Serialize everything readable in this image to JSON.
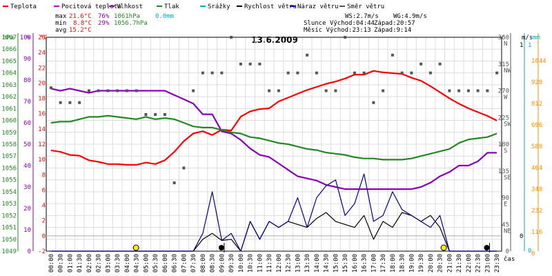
{
  "legend": [
    {
      "label": "Teplota",
      "color": "#ff0000"
    },
    {
      "label": "Pocitová teplota",
      "color": "#cc00cc"
    },
    {
      "label": "Vlhkost",
      "color": "#8800bb"
    },
    {
      "label": "Tlak",
      "color": "#228822"
    },
    {
      "label": "Srážky",
      "color": "#00aacc"
    },
    {
      "label": "Rychlost větru",
      "color": "#000000"
    },
    {
      "label": "Náraz větru",
      "color": "#00008b"
    },
    {
      "label": "Směr větru",
      "color": "#555555"
    }
  ],
  "stats": {
    "max_label": "max",
    "max_temp": "21.6°C",
    "max_hum": "76%",
    "max_press": "1061hPa",
    "max_rain": "0.0mm",
    "min_label": "min",
    "min_temp": "8.8°C",
    "min_hum": "29%",
    "min_press": "1056.7hPa",
    "avg_label": "avg",
    "avg_temp": "15.2°C",
    "ws": "WS:2.7m/s",
    "wg": "WG:4.9m/s",
    "sun": "Slunce Východ:04:44",
    "sun_set": "Západ:20:57",
    "moon": "Měsíc  Východ:23:13",
    "moon_set": "Západ:9:14"
  },
  "chart_data": {
    "type": "line",
    "title": "13.6.2009",
    "x_unit": "čas",
    "x": [
      "00:00",
      "00:30",
      "01:00",
      "01:30",
      "02:00",
      "02:30",
      "03:00",
      "03:30",
      "04:00",
      "04:30",
      "05:00",
      "05:30",
      "06:00",
      "06:30",
      "07:00",
      "07:30",
      "08:00",
      "08:30",
      "09:00",
      "09:30",
      "10:00",
      "10:30",
      "11:00",
      "11:30",
      "12:00",
      "12:30",
      "13:00",
      "13:30",
      "14:00",
      "14:30",
      "15:00",
      "15:30",
      "16:00",
      "16:30",
      "17:00",
      "17:30",
      "18:00",
      "18:30",
      "19:00",
      "19:30",
      "20:00",
      "20:30",
      "21:00",
      "21:30",
      "22:00",
      "22:30",
      "23:00",
      "23:30"
    ],
    "axes": {
      "pressure": {
        "unit": "hPa",
        "range": [
          1049,
          1067
        ],
        "ticks": [
          1049,
          1050,
          1051,
          1052,
          1053,
          1054,
          1055,
          1056,
          1057,
          1058,
          1059,
          1060,
          1061,
          1062,
          1063,
          1064,
          1065,
          1066,
          1067
        ]
      },
      "humidity": {
        "unit": "%",
        "range": [
          0,
          100
        ],
        "ticks": [
          0,
          10,
          20,
          30,
          40,
          50,
          60,
          70,
          80,
          90,
          100
        ]
      },
      "temperature": {
        "unit": "°C",
        "range": [
          -2,
          26
        ],
        "ticks": [
          -2,
          0,
          2,
          4,
          6,
          8,
          10,
          12,
          14,
          16,
          18,
          20,
          22,
          24,
          26
        ]
      },
      "direction": {
        "unit": "°",
        "range": [
          0,
          360
        ],
        "ticks": [
          {
            "v": 360,
            "l": "N"
          },
          {
            "v": 315,
            "l": "NW"
          },
          {
            "v": 270,
            "l": "W"
          },
          {
            "v": 225,
            "l": "SW"
          },
          {
            "v": 180,
            "l": "S"
          },
          {
            "v": 135,
            "l": "SE"
          },
          {
            "v": 90,
            "l": "E"
          },
          {
            "v": 45,
            "l": "NE"
          },
          {
            "v": 0,
            "l": ""
          }
        ]
      },
      "wind": {
        "unit": "m/s",
        "range": [
          -1,
          1
        ]
      },
      "rain": {
        "unit": "mm",
        "range": [
          0,
          1
        ]
      },
      "radiation": {
        "unit": "",
        "range": [
          0,
          1160
        ],
        "ticks": [
          0,
          116,
          232,
          348,
          464,
          580,
          696,
          812,
          928,
          1044
        ]
      }
    },
    "series": [
      {
        "name": "Teplota",
        "color": "#ff0000",
        "axis": "temperature",
        "values": [
          11.2,
          11.0,
          10.6,
          10.5,
          9.9,
          9.7,
          9.4,
          9.4,
          9.3,
          9.3,
          9.6,
          9.4,
          9.9,
          11.0,
          12.4,
          13.4,
          13.7,
          13.2,
          13.9,
          13.8,
          15.6,
          16.3,
          16.6,
          16.7,
          17.6,
          18.1,
          18.6,
          19.1,
          19.5,
          19.9,
          20.2,
          20.6,
          21.1,
          21.1,
          21.6,
          21.4,
          21.3,
          21.2,
          20.7,
          20.3,
          19.6,
          18.8,
          18.0,
          17.3,
          16.7,
          16.2,
          15.7,
          15.1
        ]
      },
      {
        "name": "Vlhkost",
        "color": "#8800bb",
        "axis": "humidity",
        "values": [
          76,
          75,
          76,
          75,
          74,
          75,
          75,
          75,
          75,
          75,
          75,
          75,
          75,
          73,
          71,
          69,
          64,
          64,
          56,
          55,
          52,
          48,
          45,
          44,
          41,
          38,
          35,
          34,
          33,
          31,
          30,
          29,
          29,
          29,
          29,
          29,
          29,
          29,
          29,
          30,
          32,
          35,
          37,
          40,
          40,
          42,
          46,
          46
        ]
      },
      {
        "name": "Tlak",
        "color": "#228822",
        "axis": "pressure",
        "values": [
          1059.8,
          1059.9,
          1059.9,
          1060.1,
          1060.3,
          1060.3,
          1060.4,
          1060.3,
          1060.2,
          1060.1,
          1060.3,
          1060.1,
          1060.2,
          1060.1,
          1059.8,
          1059.5,
          1059.4,
          1059.4,
          1059.2,
          1059.0,
          1058.9,
          1058.6,
          1058.5,
          1058.3,
          1058.1,
          1058.0,
          1057.8,
          1057.6,
          1057.5,
          1057.3,
          1057.2,
          1057.1,
          1056.9,
          1056.8,
          1056.8,
          1056.7,
          1056.7,
          1056.7,
          1056.8,
          1057.0,
          1057.2,
          1057.4,
          1057.6,
          1058.1,
          1058.4,
          1058.5,
          1058.6,
          1058.9
        ]
      },
      {
        "name": "Rychlost větru",
        "color": "#000000",
        "axis": "direction",
        "values": [
          0,
          0,
          0,
          0,
          0,
          0,
          0,
          0,
          0,
          0,
          0,
          0,
          0,
          0,
          0,
          0,
          20,
          30,
          18,
          20,
          0,
          50,
          20,
          50,
          40,
          50,
          45,
          40,
          55,
          65,
          50,
          45,
          40,
          60,
          20,
          50,
          40,
          65,
          60,
          50,
          60,
          40,
          0,
          0,
          0,
          0,
          0,
          0
        ]
      },
      {
        "name": "Náraz větru",
        "color": "#00008b",
        "axis": "direction",
        "values": [
          0,
          0,
          0,
          0,
          0,
          0,
          0,
          0,
          0,
          0,
          0,
          0,
          0,
          0,
          0,
          0,
          30,
          100,
          18,
          30,
          0,
          50,
          20,
          50,
          40,
          50,
          90,
          40,
          90,
          110,
          120,
          60,
          80,
          130,
          50,
          60,
          100,
          70,
          60,
          50,
          40,
          60,
          0,
          0,
          0,
          0,
          0,
          0
        ]
      },
      {
        "name": "Směr větru",
        "color": "#555555",
        "axis": "direction",
        "style": "points",
        "values": [
          275,
          250,
          250,
          250,
          270,
          270,
          270,
          270,
          270,
          270,
          230,
          230,
          230,
          115,
          140,
          270,
          300,
          300,
          300,
          360,
          315,
          315,
          315,
          270,
          270,
          300,
          300,
          330,
          300,
          270,
          270,
          360,
          300,
          300,
          250,
          270,
          330,
          300,
          300,
          315,
          300,
          315,
          270,
          270,
          270,
          270,
          270,
          300
        ]
      }
    ],
    "events": [
      {
        "type": "sunrise",
        "x": "04:44"
      },
      {
        "type": "moonset",
        "x": "09:14"
      },
      {
        "type": "sunset",
        "x": "20:57"
      },
      {
        "type": "moonrise",
        "x": "23:13"
      }
    ],
    "grid": true
  }
}
